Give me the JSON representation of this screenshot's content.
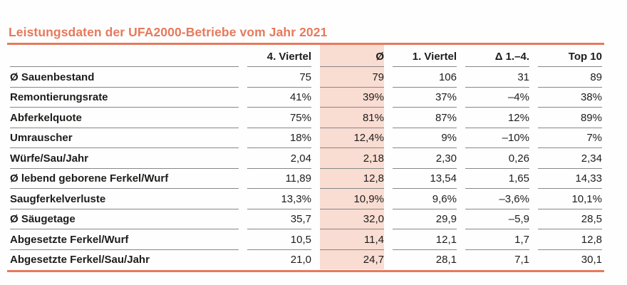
{
  "title": "Leistungsdaten der UFA2000-Betriebe vom Jahr 2021",
  "colors": {
    "accent": "#e7795b",
    "highlight_column": "#f9dcd2",
    "grid_line": "#878787",
    "text": "#1d1d1b"
  },
  "table": {
    "columns": [
      "",
      "4. Viertel",
      "Ø",
      "1. Viertel",
      "Δ 1.–4.",
      "Top 10"
    ],
    "highlighted_column": "Ø",
    "rows": [
      {
        "label": "Ø Sauenbestand",
        "values": [
          "75",
          "79",
          "106",
          "31",
          "89"
        ]
      },
      {
        "label": "Remontierungsrate",
        "values": [
          "41%",
          "39%",
          "37%",
          "–4%",
          "38%"
        ]
      },
      {
        "label": "Abferkelquote",
        "values": [
          "75%",
          "81%",
          "87%",
          "12%",
          "89%"
        ]
      },
      {
        "label": "Umrauscher",
        "values": [
          "18%",
          "12,4%",
          "9%",
          "–10%",
          "7%"
        ]
      },
      {
        "label": "Würfe/Sau/Jahr",
        "values": [
          "2,04",
          "2,18",
          "2,30",
          "0,26",
          "2,34"
        ]
      },
      {
        "label": "Ø lebend geborene Ferkel/Wurf",
        "values": [
          "11,89",
          "12,8",
          "13,54",
          "1,65",
          "14,33"
        ]
      },
      {
        "label": "Saugferkelverluste",
        "values": [
          "13,3%",
          "10,9%",
          "9,6%",
          "–3,6%",
          "10,1%"
        ]
      },
      {
        "label": "Ø Säugetage",
        "values": [
          "35,7",
          "32,0",
          "29,9",
          "–5,9",
          "28,5"
        ]
      },
      {
        "label": "Abgesetzte Ferkel/Wurf",
        "values": [
          "10,5",
          "11,4",
          "12,1",
          "1,7",
          "12,8"
        ]
      },
      {
        "label": "Abgesetzte Ferkel/Sau/Jahr",
        "values": [
          "21,0",
          "24,7",
          "28,1",
          "7,1",
          "30,1"
        ]
      }
    ]
  }
}
